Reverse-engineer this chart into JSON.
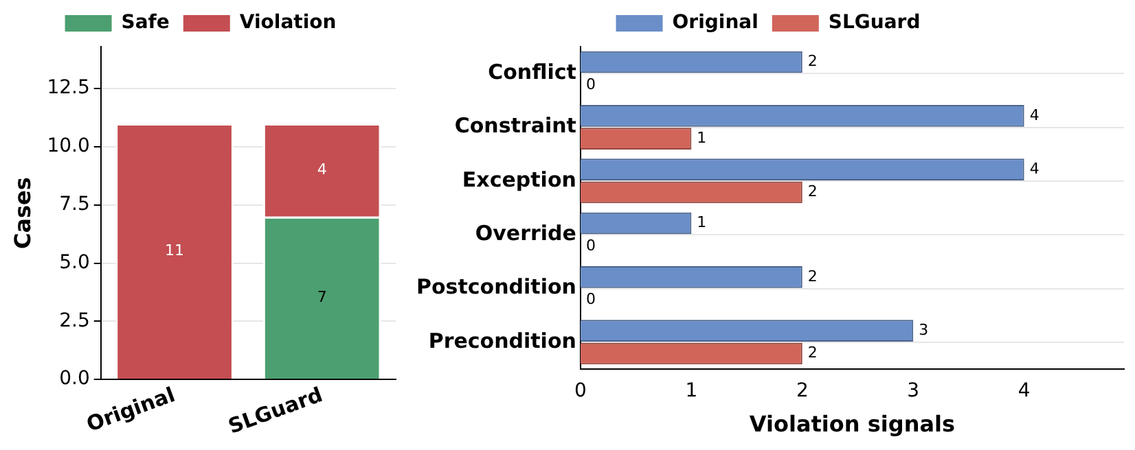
{
  "chart_data": [
    {
      "type": "bar",
      "stacked": true,
      "ylabel": "Cases",
      "categories": [
        "Original",
        "SLGuard"
      ],
      "ylim": [
        0,
        14.3
      ],
      "yticks": [
        {
          "value": 0,
          "label": "0.0"
        },
        2.5,
        {
          "value": 5,
          "label": "5.0"
        },
        7.5,
        {
          "value": 10,
          "label": "10.0"
        },
        12.5
      ],
      "grid": "y",
      "legend": "top",
      "series": [
        {
          "name": "Safe",
          "color": "#4c9f70",
          "values": [
            0,
            7
          ],
          "value_labels": [
            null,
            "7"
          ]
        },
        {
          "name": "Violation",
          "color": "#c44e52",
          "values": [
            11,
            4
          ],
          "value_labels": [
            "11",
            "4"
          ]
        }
      ]
    },
    {
      "type": "bar",
      "orientation": "horizontal",
      "xlabel": "Violation signals",
      "categories": [
        "Conflict",
        "Constraint",
        "Exception",
        "Override",
        "Postcondition",
        "Precondition"
      ],
      "xlim": [
        0,
        4.9
      ],
      "xticks": [
        0,
        1,
        2,
        3,
        4
      ],
      "grid": "y",
      "legend": "top",
      "data_labels": true,
      "series": [
        {
          "name": "Original",
          "color": "#6a8ec8",
          "values": [
            2,
            4,
            4,
            1,
            2,
            3
          ]
        },
        {
          "name": "SLGuard",
          "color": "#d1655a",
          "values": [
            0,
            1,
            2,
            0,
            0,
            2
          ]
        }
      ]
    }
  ]
}
